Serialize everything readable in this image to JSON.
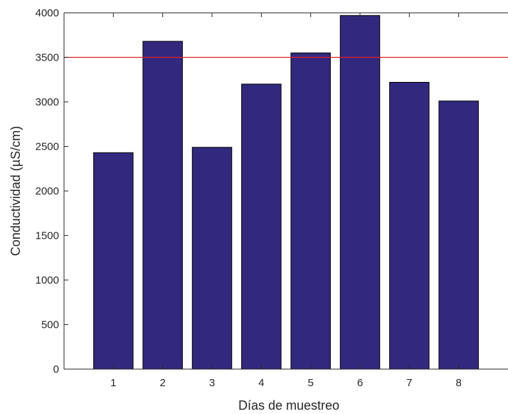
{
  "chart_data": {
    "type": "bar",
    "title": "",
    "xlabel": "Días de muestreo",
    "ylabel": "Conductividad (µS/cm)",
    "categories": [
      "1",
      "2",
      "3",
      "4",
      "5",
      "6",
      "7",
      "8"
    ],
    "values": [
      2430,
      3680,
      2490,
      3200,
      3550,
      3970,
      3220,
      3010
    ],
    "ylim": [
      0,
      4000
    ],
    "xlim": [
      0,
      9
    ],
    "yticks": [
      0,
      500,
      1000,
      1500,
      2000,
      2500,
      3000,
      3500,
      4000
    ],
    "yticklabels": [
      "0",
      "500",
      "1000",
      "1500",
      "2000",
      "2500",
      "3000",
      "3500",
      "4000"
    ],
    "reference_line": {
      "y": 3500,
      "color": "#e0202a"
    },
    "bar_color": "#32297e",
    "bar_edge_color": "#000000",
    "grid": false,
    "legend": "none"
  }
}
